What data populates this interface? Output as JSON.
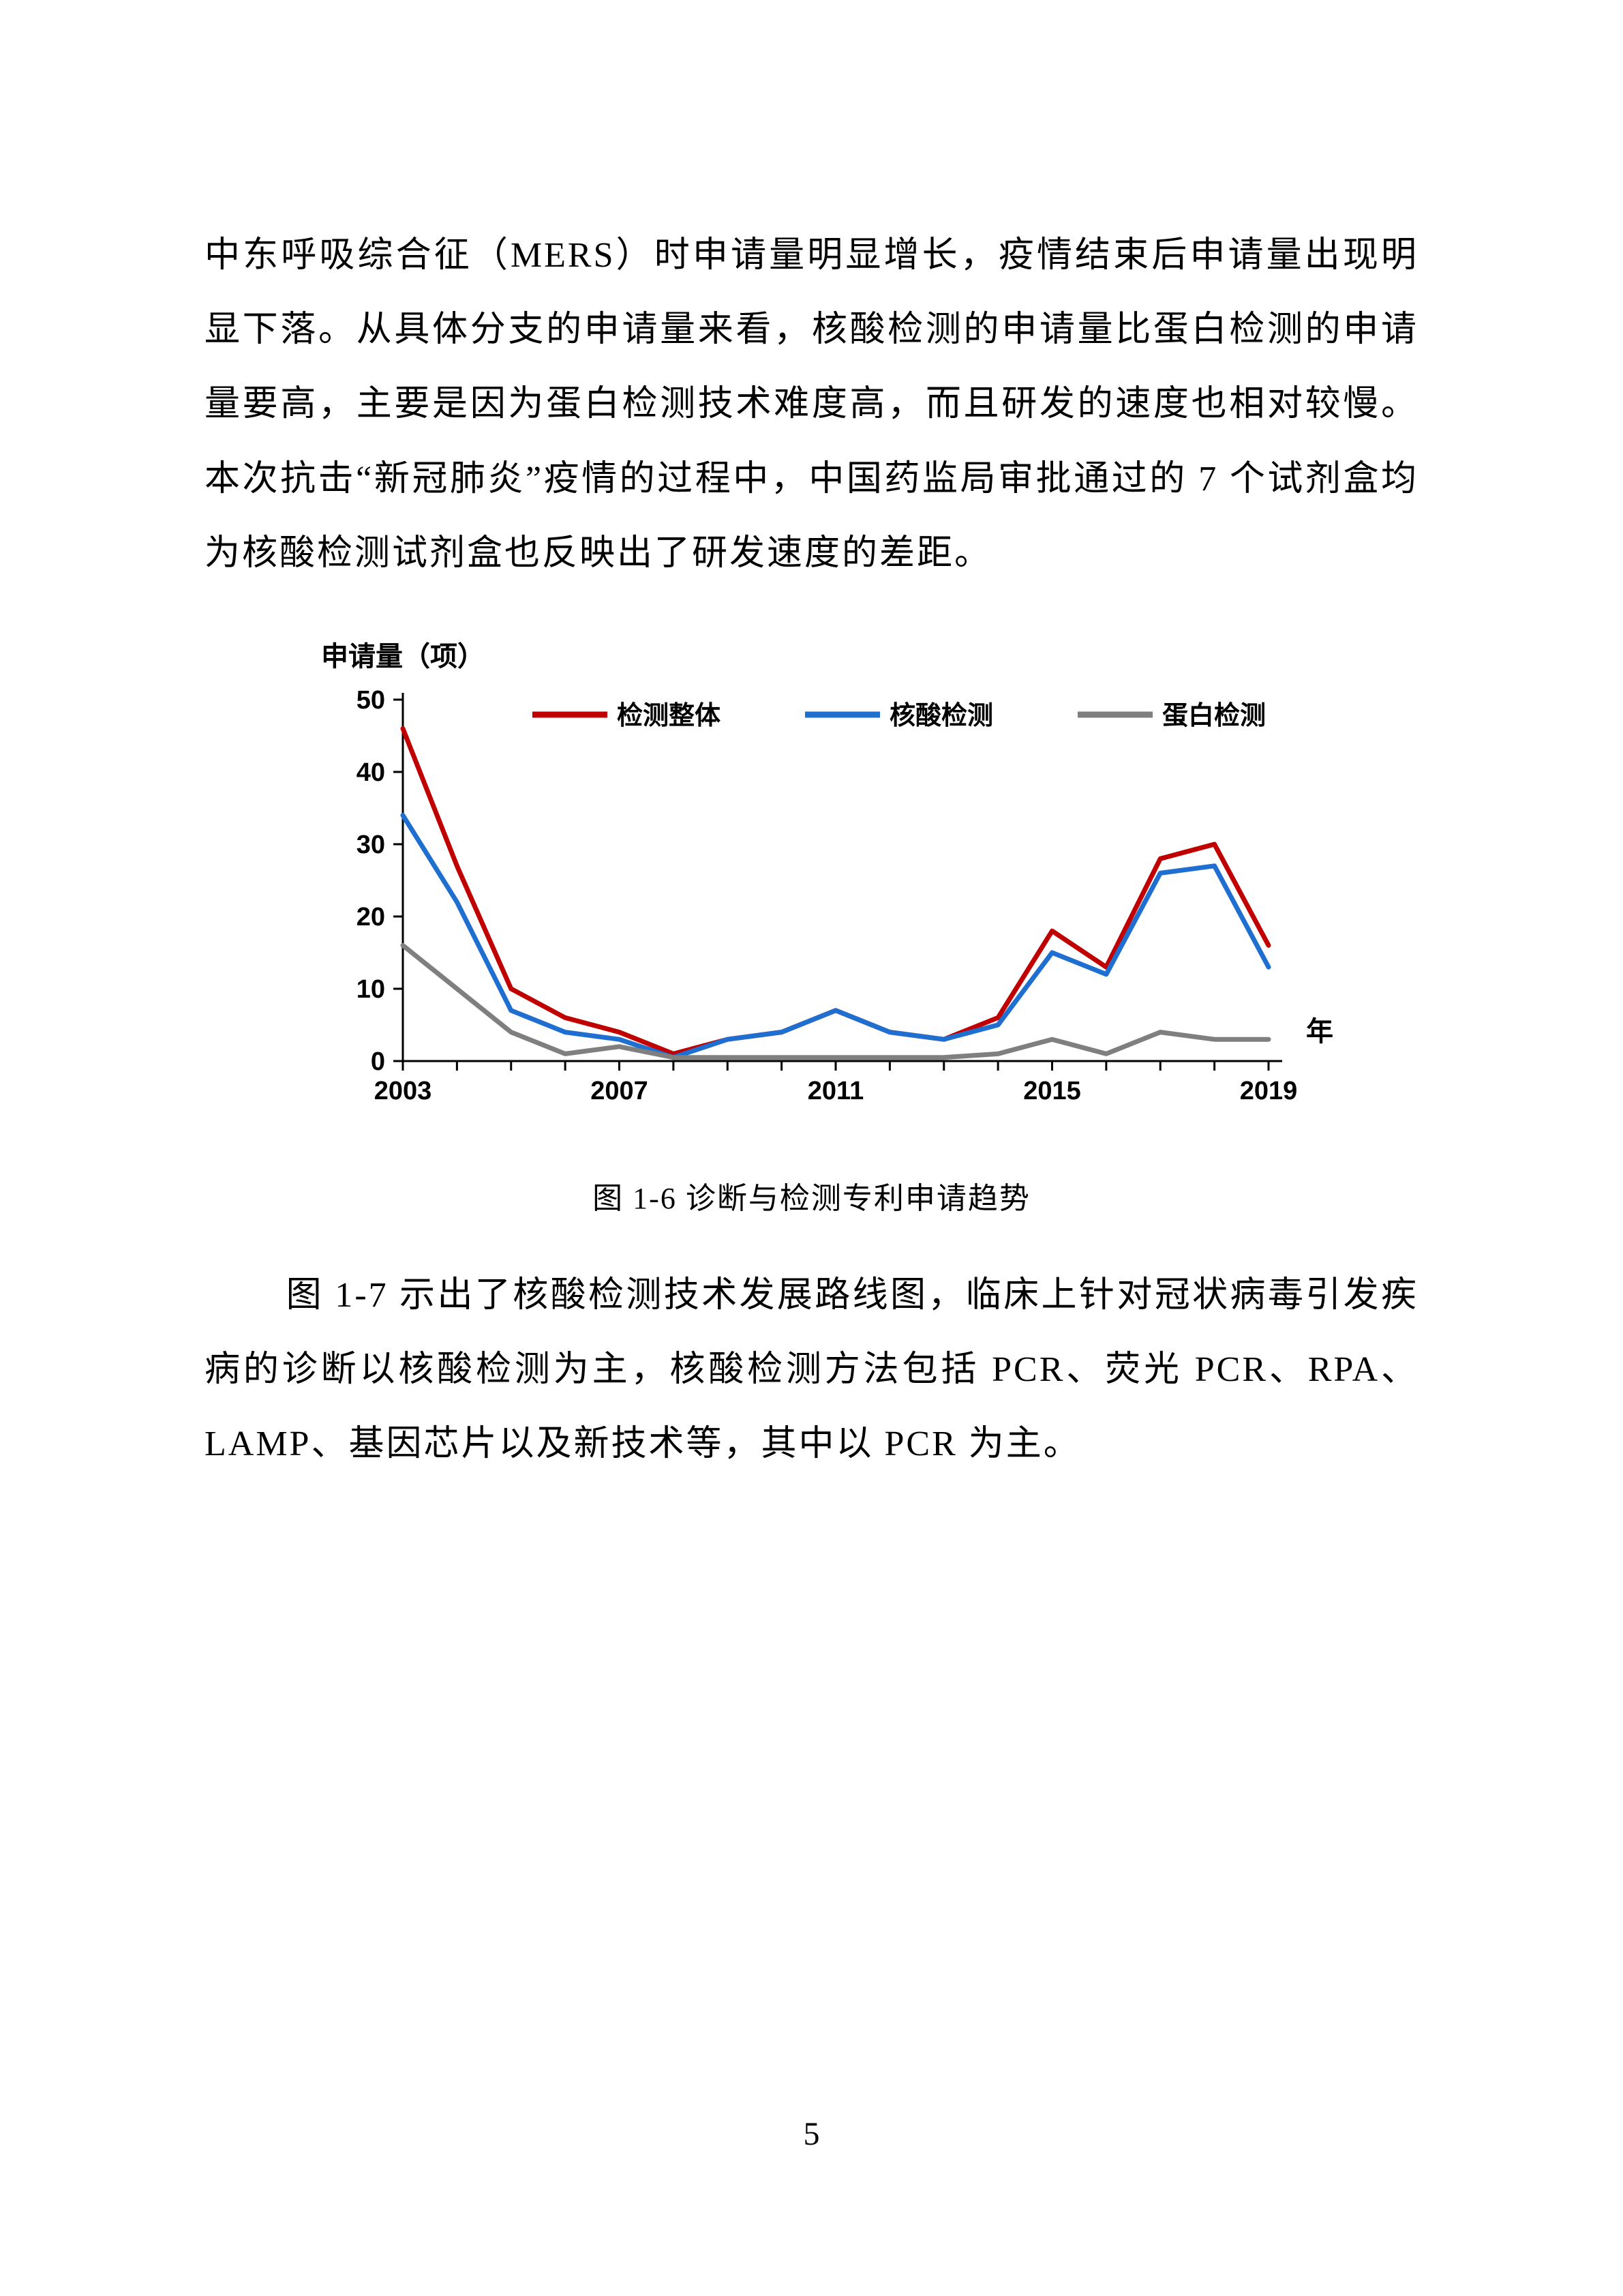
{
  "para1": "中东呼吸综合征（MERS）时申请量明显增长，疫情结束后申请量出现明显下落。从具体分支的申请量来看，核酸检测的申请量比蛋白检测的申请量要高，主要是因为蛋白检测技术难度高，而且研发的速度也相对较慢。本次抗击“新冠肺炎”疫情的过程中，中国药监局审批通过的 7 个试剂盒均为核酸检测试剂盒也反映出了研发速度的差距。",
  "caption": "图 1-6  诊断与检测专利申请趋势",
  "para2": "图 1-7 示出了核酸检测技术发展路线图，临床上针对冠状病毒引发疾病的诊断以核酸检测为主，核酸检测方法包括 PCR、荧光 PCR、RPA、LAMP、基因芯片以及新技术等，其中以 PCR 为主。",
  "pagenum": "5",
  "chart": {
    "type": "line",
    "y_axis_title": "申请量（项）",
    "x_axis_title": "年",
    "ylim": [
      0,
      50
    ],
    "ytick_step": 10,
    "yticks": [
      0,
      10,
      20,
      30,
      40,
      50
    ],
    "x_categories": [
      2003,
      2004,
      2005,
      2006,
      2007,
      2008,
      2009,
      2010,
      2011,
      2012,
      2013,
      2014,
      2015,
      2016,
      2017,
      2018,
      2019
    ],
    "x_tick_labels": [
      "2003",
      "2007",
      "2011",
      "2015",
      "2019"
    ],
    "x_tick_positions": [
      2003,
      2007,
      2011,
      2015,
      2019
    ],
    "axis_color": "#000000",
    "axis_width": 3,
    "tick_length": 14,
    "background_color": "#ffffff",
    "title_fontsize": 40,
    "tick_fontsize": 38,
    "legend_fontsize": 38,
    "line_width": 7,
    "series": [
      {
        "name": "检测整体",
        "color": "#c00000",
        "values": [
          46,
          27,
          10,
          6,
          4,
          1,
          3,
          4,
          7,
          4,
          3,
          6,
          18,
          13,
          28,
          30,
          16
        ]
      },
      {
        "name": "核酸检测",
        "color": "#1f6fd1",
        "values": [
          34,
          22,
          7,
          4,
          3,
          0.5,
          3,
          4,
          7,
          4,
          3,
          5,
          15,
          12,
          26,
          27,
          13
        ]
      },
      {
        "name": "蛋白检测",
        "color": "#7f7f7f",
        "values": [
          16,
          10,
          4,
          1,
          2,
          0.5,
          0.5,
          0.5,
          0.5,
          0.5,
          0.5,
          1,
          3,
          1,
          4,
          3,
          3
        ]
      }
    ],
    "legend_items": [
      "检测整体",
      "核酸检测",
      "蛋白检测"
    ]
  }
}
